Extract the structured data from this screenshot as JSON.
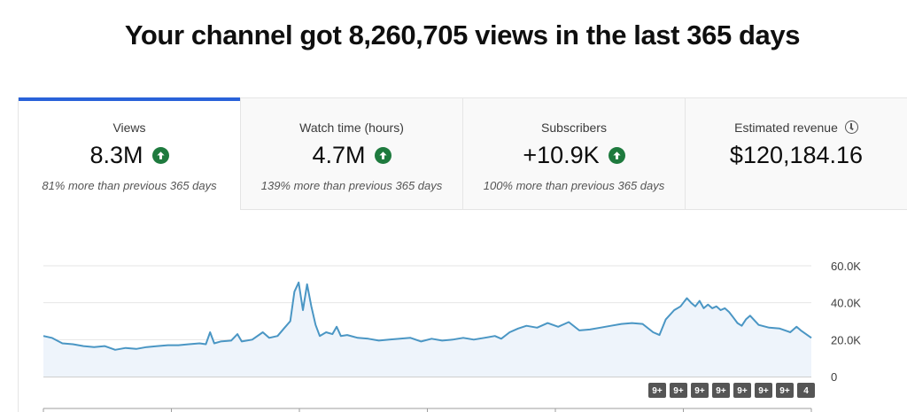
{
  "headline": "Your channel got 8,260,705 views in the last 365 days",
  "tabs": [
    {
      "label": "Views",
      "value": "8.3M",
      "trend": "up",
      "compare": "81% more than previous 365 days",
      "active": true
    },
    {
      "label": "Watch time (hours)",
      "value": "4.7M",
      "trend": "up",
      "compare": "139% more than previous 365 days",
      "active": false
    },
    {
      "label": "Subscribers",
      "value": "+10.9K",
      "trend": "up",
      "compare": "100% more than previous 365 days",
      "active": false
    },
    {
      "label": "Estimated revenue",
      "value": "$120,184.16",
      "trend": "none",
      "compare": "",
      "active": false
    }
  ],
  "colors": {
    "accent": "#2962d9",
    "line": "#4a96c4",
    "area": "#eef4fb",
    "trend_up": "#1e7a3e"
  },
  "chart_data": {
    "type": "area",
    "x_range": [
      1,
      365
    ],
    "ylim": [
      0,
      60000
    ],
    "y_ticks": [
      "0",
      "20.0K",
      "40.0K",
      "60.0K"
    ],
    "grid": true,
    "series": [
      {
        "name": "",
        "points": [
          [
            1,
            22000
          ],
          [
            5,
            21000
          ],
          [
            10,
            18000
          ],
          [
            15,
            17500
          ],
          [
            20,
            16500
          ],
          [
            25,
            16000
          ],
          [
            30,
            16500
          ],
          [
            35,
            14500
          ],
          [
            40,
            15500
          ],
          [
            45,
            15000
          ],
          [
            50,
            16000
          ],
          [
            55,
            16500
          ],
          [
            60,
            17000
          ],
          [
            65,
            17000
          ],
          [
            70,
            17500
          ],
          [
            75,
            18000
          ],
          [
            78,
            17500
          ],
          [
            80,
            24000
          ],
          [
            82,
            18000
          ],
          [
            85,
            19000
          ],
          [
            90,
            19500
          ],
          [
            93,
            23000
          ],
          [
            95,
            19000
          ],
          [
            100,
            20000
          ],
          [
            105,
            24000
          ],
          [
            108,
            21000
          ],
          [
            112,
            22000
          ],
          [
            115,
            26000
          ],
          [
            118,
            30000
          ],
          [
            120,
            46000
          ],
          [
            122,
            51000
          ],
          [
            124,
            36000
          ],
          [
            126,
            50000
          ],
          [
            128,
            38000
          ],
          [
            130,
            28000
          ],
          [
            132,
            22000
          ],
          [
            135,
            24000
          ],
          [
            138,
            23000
          ],
          [
            140,
            27000
          ],
          [
            142,
            22000
          ],
          [
            145,
            22500
          ],
          [
            150,
            21000
          ],
          [
            155,
            20500
          ],
          [
            160,
            19500
          ],
          [
            165,
            20000
          ],
          [
            170,
            20500
          ],
          [
            175,
            21000
          ],
          [
            180,
            19000
          ],
          [
            185,
            20500
          ],
          [
            190,
            19500
          ],
          [
            195,
            20000
          ],
          [
            200,
            21000
          ],
          [
            205,
            20000
          ],
          [
            210,
            21000
          ],
          [
            215,
            22000
          ],
          [
            218,
            20500
          ],
          [
            222,
            24000
          ],
          [
            226,
            26000
          ],
          [
            230,
            27500
          ],
          [
            235,
            26500
          ],
          [
            240,
            29000
          ],
          [
            245,
            27000
          ],
          [
            250,
            29500
          ],
          [
            255,
            25000
          ],
          [
            260,
            25500
          ],
          [
            265,
            26500
          ],
          [
            270,
            27500
          ],
          [
            275,
            28500
          ],
          [
            280,
            29000
          ],
          [
            285,
            28500
          ],
          [
            290,
            24000
          ],
          [
            293,
            22500
          ],
          [
            296,
            31000
          ],
          [
            300,
            36000
          ],
          [
            303,
            38000
          ],
          [
            306,
            42500
          ],
          [
            308,
            40000
          ],
          [
            310,
            38000
          ],
          [
            312,
            41000
          ],
          [
            314,
            37000
          ],
          [
            316,
            39000
          ],
          [
            318,
            37000
          ],
          [
            320,
            38000
          ],
          [
            322,
            36000
          ],
          [
            324,
            37000
          ],
          [
            326,
            35000
          ],
          [
            328,
            32000
          ],
          [
            330,
            29000
          ],
          [
            332,
            27500
          ],
          [
            334,
            31000
          ],
          [
            336,
            33000
          ],
          [
            340,
            28000
          ],
          [
            345,
            26500
          ],
          [
            350,
            26000
          ],
          [
            355,
            24000
          ],
          [
            358,
            27000
          ],
          [
            360,
            25000
          ],
          [
            365,
            21000
          ]
        ]
      }
    ],
    "annotations": [
      "9+",
      "9+",
      "9+",
      "9+",
      "9+",
      "9+",
      "9+",
      "4"
    ]
  }
}
